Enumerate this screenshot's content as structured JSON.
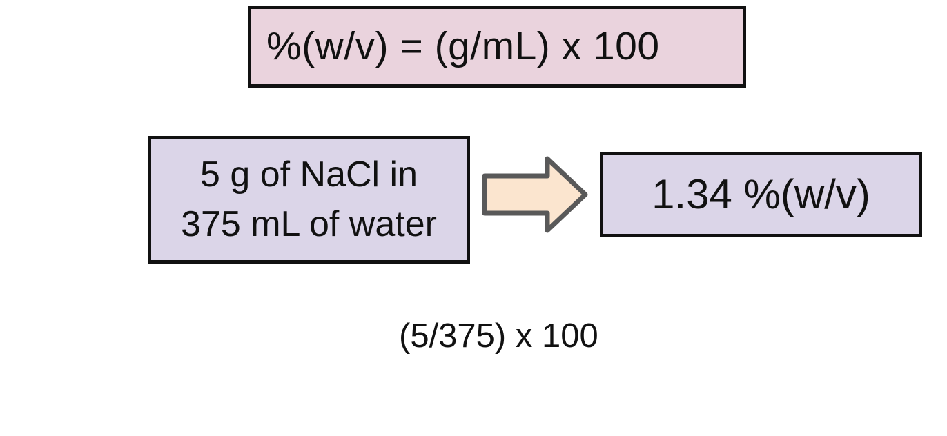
{
  "formula": {
    "text": "%(w/v) = (g/mL) x 100",
    "fill_color": "#ead3dd"
  },
  "given": {
    "line1": "5 g of NaCl in",
    "line2": "375 mL of water",
    "fill_color": "#dbd5e8"
  },
  "arrow": {
    "icon": "right-arrow-icon",
    "fill_color": "#fbe5cf",
    "stroke_color": "#595959"
  },
  "result": {
    "text": "1.34 %(w/v)",
    "fill_color": "#dbd5e8"
  },
  "calculation": {
    "text": "(5/375) x 100"
  }
}
